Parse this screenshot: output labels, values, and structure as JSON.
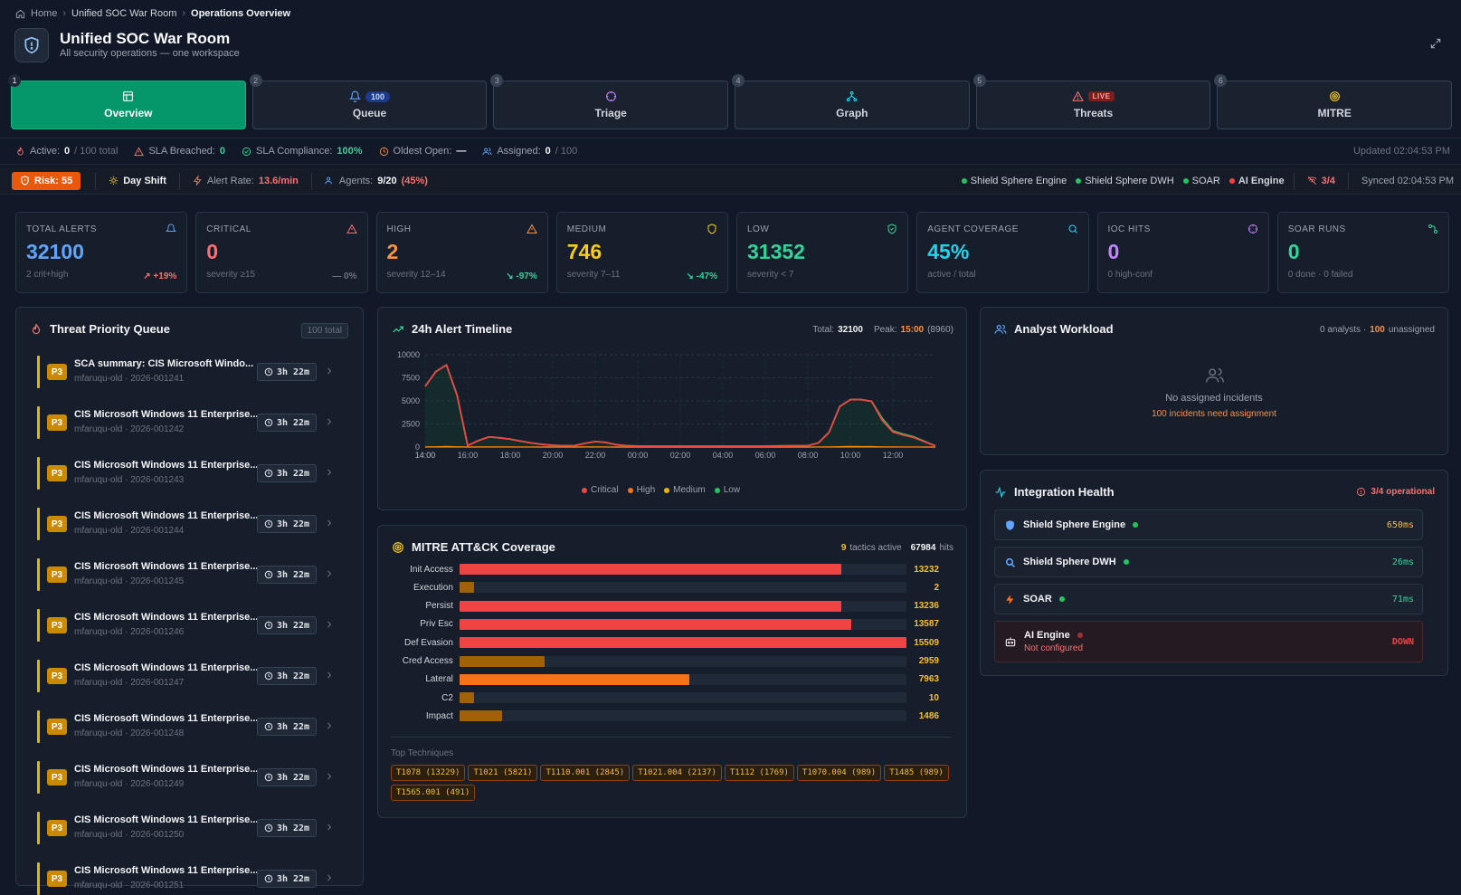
{
  "breadcrumb": {
    "home": "Home",
    "mid": "Unified SOC War Room",
    "current": "Operations Overview"
  },
  "header": {
    "title": "Unified SOC War Room",
    "subtitle": "All security operations — one workspace"
  },
  "tabs": [
    {
      "num": "1",
      "label": "Overview"
    },
    {
      "num": "2",
      "label": "Queue",
      "badge": "100"
    },
    {
      "num": "3",
      "label": "Triage"
    },
    {
      "num": "4",
      "label": "Graph"
    },
    {
      "num": "5",
      "label": "Threats",
      "badge": "LIVE"
    },
    {
      "num": "6",
      "label": "MITRE"
    }
  ],
  "status": {
    "active_label": "Active:",
    "active_val": "0",
    "active_total": "/ 100 total",
    "sla_label": "SLA Breached:",
    "sla_val": "0",
    "comp_label": "SLA Compliance:",
    "comp_val": "100%",
    "oldest_label": "Oldest Open:",
    "oldest_val": "—",
    "assigned_label": "Assigned:",
    "assigned_val": "0",
    "assigned_total": "/ 100",
    "updated": "Updated 02:04:53 PM"
  },
  "strip2": {
    "risk": "Risk: 55",
    "shift": "Day Shift",
    "rate_label": "Alert Rate:",
    "rate_val": "13.6/min",
    "agents_label": "Agents:",
    "agents_val": "9/20",
    "agents_pct": "(45%)",
    "services": [
      "Shield Sphere Engine",
      "Shield Sphere DWH",
      "SOAR",
      "AI Engine"
    ],
    "svc_count": "3/4",
    "synced": "Synced 02:04:53 PM"
  },
  "kpis": [
    {
      "label": "TOTAL ALERTS",
      "value": "32100",
      "sub": "2 crit+high",
      "trend": "↗ +19%",
      "color": "#60a5fa"
    },
    {
      "label": "CRITICAL",
      "value": "0",
      "sub": "severity ≥15",
      "trend": "— 0%",
      "color": "#f87171"
    },
    {
      "label": "HIGH",
      "value": "2",
      "sub": "severity 12–14",
      "trend": "↘ -97%",
      "color": "#fb923c"
    },
    {
      "label": "MEDIUM",
      "value": "746",
      "sub": "severity 7–11",
      "trend": "↘ -47%",
      "color": "#facc15"
    },
    {
      "label": "LOW",
      "value": "31352",
      "sub": "severity < 7",
      "trend": "",
      "color": "#34d399"
    },
    {
      "label": "AGENT COVERAGE",
      "value": "45%",
      "sub": "active / total",
      "trend": "",
      "color": "#22d3ee"
    },
    {
      "label": "IOC HITS",
      "value": "0",
      "sub": "0 high-conf",
      "trend": "",
      "color": "#c084fc"
    },
    {
      "label": "SOAR RUNS",
      "value": "0",
      "sub": "0 done · 0 failed",
      "trend": "",
      "color": "#34d399"
    }
  ],
  "queue": {
    "title": "Threat Priority Queue",
    "total": "100 total",
    "items": [
      {
        "pri": "P3",
        "title": "SCA summary: CIS Microsoft Windo...",
        "sub": "mfaruqu-old · 2026-001241",
        "age": "3h 22m"
      },
      {
        "pri": "P3",
        "title": "CIS Microsoft Windows 11 Enterprise...",
        "sub": "mfaruqu-old · 2026-001242",
        "age": "3h 22m"
      },
      {
        "pri": "P3",
        "title": "CIS Microsoft Windows 11 Enterprise...",
        "sub": "mfaruqu-old · 2026-001243",
        "age": "3h 22m"
      },
      {
        "pri": "P3",
        "title": "CIS Microsoft Windows 11 Enterprise...",
        "sub": "mfaruqu-old · 2026-001244",
        "age": "3h 22m"
      },
      {
        "pri": "P3",
        "title": "CIS Microsoft Windows 11 Enterprise...",
        "sub": "mfaruqu-old · 2026-001245",
        "age": "3h 22m"
      },
      {
        "pri": "P3",
        "title": "CIS Microsoft Windows 11 Enterprise...",
        "sub": "mfaruqu-old · 2026-001246",
        "age": "3h 22m"
      },
      {
        "pri": "P3",
        "title": "CIS Microsoft Windows 11 Enterprise...",
        "sub": "mfaruqu-old · 2026-001247",
        "age": "3h 22m"
      },
      {
        "pri": "P3",
        "title": "CIS Microsoft Windows 11 Enterprise...",
        "sub": "mfaruqu-old · 2026-001248",
        "age": "3h 22m"
      },
      {
        "pri": "P3",
        "title": "CIS Microsoft Windows 11 Enterprise...",
        "sub": "mfaruqu-old · 2026-001249",
        "age": "3h 22m"
      },
      {
        "pri": "P3",
        "title": "CIS Microsoft Windows 11 Enterprise...",
        "sub": "mfaruqu-old · 2026-001250",
        "age": "3h 22m"
      },
      {
        "pri": "P3",
        "title": "CIS Microsoft Windows 11 Enterprise...",
        "sub": "mfaruqu-old · 2026-001251",
        "age": "3h 22m"
      }
    ]
  },
  "timeline": {
    "title": "24h Alert Timeline",
    "total_label": "Total:",
    "total_val": "32100",
    "peak_label": "Peak:",
    "peak_time": "15:00",
    "peak_val": "(8960)"
  },
  "chart_data": {
    "type": "line",
    "title": "24h Alert Timeline",
    "x": [
      "14:00",
      "14:30",
      "15:00",
      "15:30",
      "16:00",
      "16:30",
      "17:00",
      "17:30",
      "18:00",
      "18:30",
      "19:00",
      "19:30",
      "20:00",
      "20:30",
      "21:00",
      "21:30",
      "22:00",
      "22:30",
      "23:00",
      "23:30",
      "00:00",
      "00:30",
      "01:00",
      "01:30",
      "02:00",
      "02:30",
      "03:00",
      "03:30",
      "04:00",
      "04:30",
      "05:00",
      "05:30",
      "06:00",
      "06:30",
      "07:00",
      "07:30",
      "08:00",
      "08:30",
      "09:00",
      "09:30",
      "10:00",
      "10:30",
      "11:00",
      "11:30",
      "12:00",
      "12:30",
      "13:00",
      "13:30",
      "14:00"
    ],
    "xticks": [
      "14:00",
      "16:00",
      "18:00",
      "20:00",
      "22:00",
      "00:00",
      "02:00",
      "04:00",
      "06:00",
      "08:00",
      "10:00",
      "12:00",
      "14:00"
    ],
    "ylim": [
      0,
      10000
    ],
    "yticks": [
      0,
      2500,
      5000,
      7500,
      10000
    ],
    "legend": [
      "Critical",
      "High",
      "Medium",
      "Low"
    ],
    "series": [
      {
        "name": "Critical",
        "color": "#ef4444",
        "values": [
          0,
          0,
          0,
          0,
          0,
          0,
          0,
          0,
          0,
          0,
          0,
          0,
          0,
          0,
          0,
          0,
          0,
          0,
          0,
          0,
          0,
          0,
          0,
          0,
          0,
          0,
          0,
          0,
          0,
          0,
          0,
          0,
          0,
          0,
          0,
          0,
          0,
          0,
          0,
          0,
          0,
          0,
          0,
          0,
          0,
          0,
          0,
          0,
          0
        ]
      },
      {
        "name": "High",
        "color": "#f97316",
        "values": [
          0,
          0,
          0,
          0,
          0,
          0,
          0,
          0,
          0,
          0,
          0,
          0,
          0,
          0,
          0,
          0,
          0,
          0,
          0,
          0,
          0,
          0,
          0,
          0,
          0,
          0,
          0,
          0,
          0,
          0,
          0,
          0,
          0,
          0,
          0,
          0,
          0,
          0,
          0,
          0,
          0,
          0,
          0,
          0,
          0,
          0,
          0,
          0,
          0
        ]
      },
      {
        "name": "Medium",
        "color": "#eab308",
        "values": [
          16,
          30,
          60,
          30,
          2,
          10,
          20,
          15,
          10,
          8,
          5,
          3,
          2,
          2,
          2,
          10,
          15,
          8,
          3,
          2,
          2,
          2,
          2,
          2,
          2,
          2,
          2,
          2,
          2,
          2,
          2,
          2,
          2,
          2,
          2,
          2,
          2,
          5,
          10,
          40,
          60,
          55,
          50,
          20,
          10,
          8,
          5,
          3,
          2
        ]
      },
      {
        "name": "Low",
        "color": "#22c55e",
        "values": [
          6584,
          8170,
          8900,
          5620,
          150,
          700,
          1100,
          1000,
          860,
          640,
          440,
          290,
          190,
          150,
          140,
          390,
          600,
          500,
          250,
          140,
          110,
          100,
          100,
          100,
          100,
          100,
          100,
          100,
          100,
          100,
          100,
          100,
          110,
          120,
          130,
          140,
          150,
          460,
          1600,
          4400,
          5140,
          5150,
          4950,
          3100,
          1750,
          1400,
          1100,
          600,
          130
        ]
      }
    ]
  },
  "mitre": {
    "title": "MITRE ATT&CK Coverage",
    "tactics_val": "9",
    "tactics_label": "tactics active",
    "hits_val": "67984",
    "hits_label": "hits",
    "rows": [
      {
        "label": "Init Access",
        "value": 13232,
        "display": "13232",
        "color": "#ef4444"
      },
      {
        "label": "Execution",
        "value": 2,
        "display": "2",
        "color": "#a16207"
      },
      {
        "label": "Persist",
        "value": 13236,
        "display": "13236",
        "color": "#ef4444"
      },
      {
        "label": "Priv Esc",
        "value": 13587,
        "display": "13587",
        "color": "#ef4444"
      },
      {
        "label": "Def Evasion",
        "value": 15509,
        "display": "15509",
        "color": "#ef4444"
      },
      {
        "label": "Cred Access",
        "value": 2959,
        "display": "2959",
        "color": "#a16207"
      },
      {
        "label": "Lateral",
        "value": 7963,
        "display": "7963",
        "color": "#f97316"
      },
      {
        "label": "C2",
        "value": 10,
        "display": "10",
        "color": "#a16207"
      },
      {
        "label": "Impact",
        "value": 1486,
        "display": "1486",
        "color": "#a16207"
      }
    ],
    "max": 15509,
    "top_label": "Top Techniques",
    "techniques": [
      "T1078 (13229)",
      "T1021 (5821)",
      "T1110.001 (2845)",
      "T1021.004 (2137)",
      "T1112 (1769)",
      "T1070.004 (989)",
      "T1485 (989)",
      "T1565.001 (491)"
    ]
  },
  "workload": {
    "title": "Analyst Workload",
    "analysts": "0 analysts ·",
    "unassigned_val": "100",
    "unassigned_label": "unassigned",
    "empty": "No assigned incidents",
    "need": "100 incidents need assignment"
  },
  "integration": {
    "title": "Integration Health",
    "status": "3/4 operational",
    "items": [
      {
        "name": "Shield Sphere Engine",
        "latency": "650ms",
        "dot": "#22c55e"
      },
      {
        "name": "Shield Sphere DWH",
        "latency": "26ms",
        "dot": "#22c55e"
      },
      {
        "name": "SOAR",
        "latency": "71ms",
        "dot": "#22c55e"
      },
      {
        "name": "AI Engine",
        "latency": "DOWN",
        "sub": "Not configured",
        "dot": "#ef4444"
      }
    ]
  }
}
